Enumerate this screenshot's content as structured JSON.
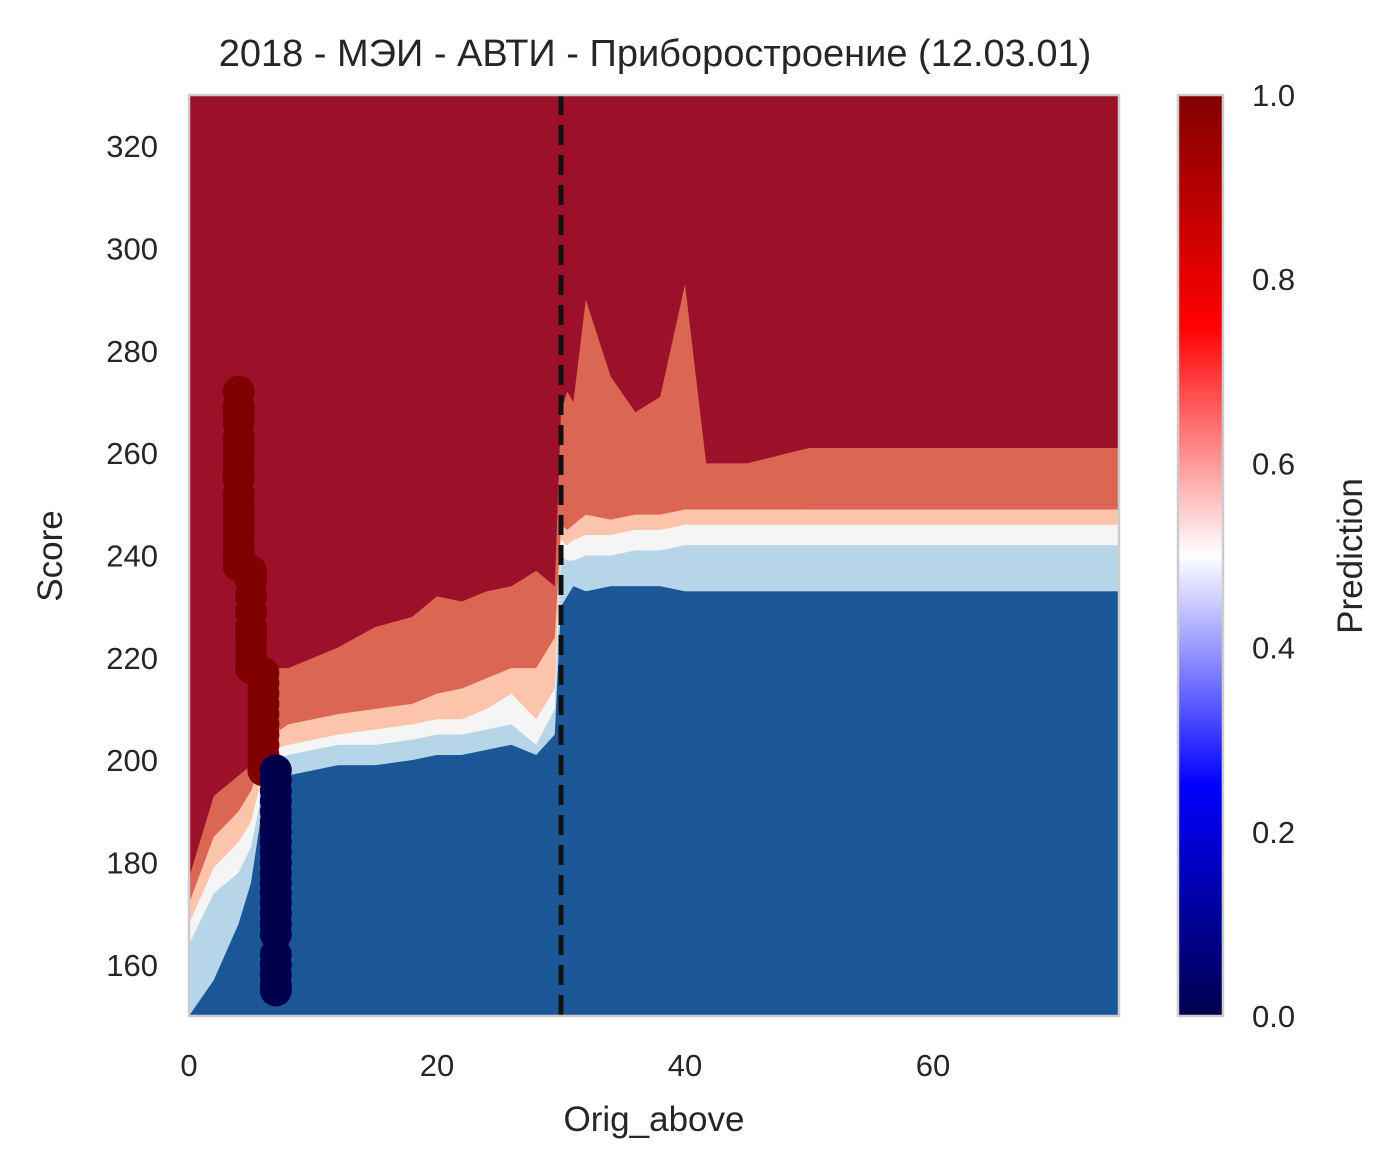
{
  "chart_data": {
    "type": "heatmap",
    "title": "2018 - МЭИ - АВТИ - Приборостроение (12.03.01)",
    "xlabel": "Orig_above",
    "ylabel": "Score",
    "xlim": [
      0,
      75
    ],
    "ylim": [
      150,
      330
    ],
    "x_ticks": [
      "0",
      "20",
      "40",
      "60"
    ],
    "y_ticks": [
      "160",
      "180",
      "200",
      "220",
      "240",
      "260",
      "280",
      "300",
      "320"
    ],
    "grid": false,
    "colorbar": {
      "label": "Prediction",
      "range": [
        0,
        1
      ],
      "ticks": [
        "0.0",
        "0.2",
        "0.4",
        "0.6",
        "0.8",
        "1.0"
      ],
      "colormap": "seismic",
      "stops": [
        "#00004d",
        "#0000ff",
        "#ffffff",
        "#ff0000",
        "#800000"
      ]
    },
    "contour_levels": [
      0.0,
      0.1,
      0.2,
      0.3,
      0.4,
      0.5,
      0.6,
      0.7,
      0.8,
      0.9,
      1.0
    ],
    "contour_colors": [
      "#1b5797",
      "#4b97c5",
      "#b7d5e8",
      "#f5f5f5",
      "#fbc4ab",
      "#dc6654",
      "#9c1129"
    ],
    "cutoff_line": {
      "x": 30,
      "style": "dashed",
      "color": "#111111"
    },
    "boundaries": {
      "low_x": [
        0,
        2,
        4,
        5,
        6,
        6.8,
        8,
        10,
        12,
        15,
        18,
        20,
        22,
        24,
        26,
        28,
        29.5,
        30,
        30.5,
        31,
        32,
        34,
        36,
        38,
        40,
        42,
        45,
        50,
        55,
        60,
        65,
        70,
        75
      ],
      "upper_y": [
        177,
        193,
        197,
        199,
        216,
        218,
        218,
        220,
        222,
        226,
        228,
        232,
        231,
        233,
        234,
        237,
        234,
        268,
        272,
        270,
        290,
        275,
        268,
        271,
        293,
        252,
        252,
        250,
        250,
        250,
        250,
        250,
        250
      ],
      "mid2_y": [
        172,
        185,
        190,
        194,
        201,
        205,
        207,
        208,
        209,
        210,
        211,
        213,
        214,
        216,
        218,
        218,
        224,
        246,
        245,
        246,
        248,
        247,
        248,
        248,
        249,
        249,
        249,
        249,
        249,
        249,
        249,
        249,
        249
      ],
      "mid_y": [
        168,
        179,
        184,
        188,
        198,
        202,
        203,
        204,
        205,
        206,
        207,
        208,
        208,
        210,
        213,
        208,
        214,
        243,
        242,
        243,
        244,
        244,
        245,
        245,
        246,
        246,
        246,
        246,
        246,
        246,
        246,
        246,
        246
      ],
      "lowmid_y": [
        164,
        174,
        178,
        183,
        195,
        200,
        201,
        202,
        203,
        203,
        204,
        205,
        205,
        206,
        207,
        203,
        210,
        240,
        239,
        239,
        240,
        240,
        241,
        241,
        242,
        242,
        242,
        242,
        242,
        242,
        242,
        242,
        242
      ],
      "low_y": [
        150,
        157,
        168,
        176,
        192,
        196,
        197,
        198,
        199,
        199,
        200,
        201,
        201,
        202,
        203,
        201,
        205,
        230,
        232,
        234,
        233,
        234,
        234,
        234,
        233,
        233,
        233,
        233,
        233,
        233,
        233,
        233,
        233
      ]
    },
    "mid_band": {
      "x": [
        38,
        40,
        41,
        45,
        50,
        55,
        60,
        65,
        70,
        75
      ],
      "top_y": [
        258,
        258,
        258,
        258,
        261,
        261,
        261,
        261,
        261,
        261
      ],
      "bottom_y": [
        250,
        250,
        250,
        250,
        250,
        250,
        250,
        250,
        250,
        250
      ]
    },
    "points_admitted": {
      "color": "#800000",
      "x": [
        4,
        4,
        4,
        4,
        4,
        4,
        4,
        4,
        4,
        4,
        4,
        4,
        4,
        4,
        4,
        4,
        4,
        4,
        5,
        5,
        5,
        5,
        5,
        5,
        5,
        5,
        5,
        6,
        6,
        6,
        6,
        6,
        6,
        6,
        6,
        6,
        6,
        6
      ],
      "y": [
        272,
        269,
        266,
        263,
        260,
        258,
        255,
        252,
        250,
        248,
        246,
        244,
        242,
        240,
        238,
        256,
        262,
        268,
        237,
        235,
        232,
        229,
        226,
        224,
        222,
        220,
        218,
        217,
        215,
        213,
        211,
        209,
        207,
        205,
        203,
        201,
        199,
        198
      ]
    },
    "points_rejected": {
      "color": "#00004d",
      "x": [
        7,
        7,
        7,
        7,
        7,
        7,
        7,
        7,
        7,
        7,
        7,
        7,
        7,
        7,
        7,
        7,
        7,
        7,
        7,
        7,
        7,
        7
      ],
      "y": [
        198,
        196,
        194,
        192,
        190,
        188,
        186,
        184,
        182,
        180,
        178,
        176,
        174,
        172,
        170,
        168,
        162,
        160,
        158,
        156,
        155,
        166
      ]
    }
  }
}
